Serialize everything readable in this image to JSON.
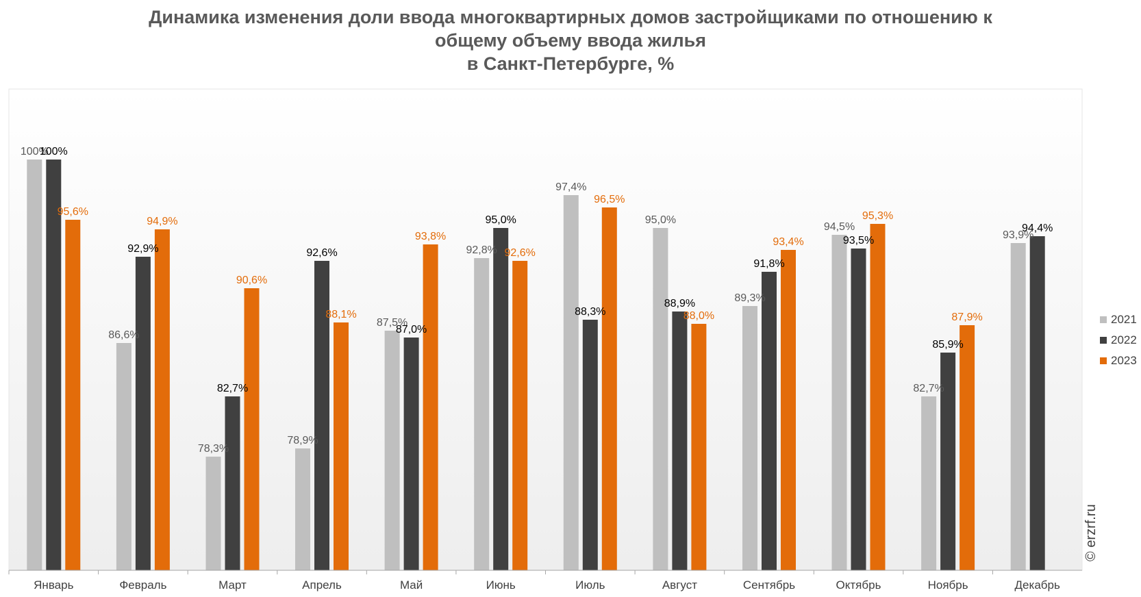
{
  "title": {
    "line1": "Динамика изменения доли ввода многоквартирных домов застройщиками по отношению к",
    "line2": "общему объему ввода жилья",
    "line3": "в Санкт-Петербурге, %"
  },
  "watermark": "© erzrf.ru",
  "colors": {
    "s2021": "#bfbfbf",
    "s2022": "#404040",
    "s2023": "#e36c0a"
  },
  "chart_data": {
    "type": "bar",
    "categories": [
      "Январь",
      "Февраль",
      "Март",
      "Апрель",
      "Май",
      "Июнь",
      "Июль",
      "Август",
      "Сентябрь",
      "Октябрь",
      "Ноябрь",
      "Декабрь"
    ],
    "ylim": [
      70,
      100
    ],
    "series": [
      {
        "name": "2021",
        "values": [
          100,
          86.6,
          78.3,
          78.9,
          87.5,
          92.8,
          97.4,
          95.0,
          89.3,
          94.5,
          82.7,
          93.9
        ],
        "labels": [
          "100%",
          "86,6%",
          "78,3%",
          "78,9%",
          "87,5%",
          "92,8%",
          "97,4%",
          "95,0%",
          "89,3%",
          "94,5%",
          "82,7%",
          "93,9%"
        ]
      },
      {
        "name": "2022",
        "values": [
          100,
          92.9,
          82.7,
          92.6,
          87.0,
          95.0,
          88.3,
          88.9,
          91.8,
          93.5,
          85.9,
          94.4
        ],
        "labels": [
          "100%",
          "92,9%",
          "82,7%",
          "92,6%",
          "87,0%",
          "95,0%",
          "88,3%",
          "88,9%",
          "91,8%",
          "93,5%",
          "85,9%",
          "94,4%"
        ]
      },
      {
        "name": "2023",
        "values": [
          95.6,
          94.9,
          90.6,
          88.1,
          93.8,
          92.6,
          96.5,
          88.0,
          93.4,
          95.3,
          87.9,
          null
        ],
        "labels": [
          "95,6%",
          "94,9%",
          "90,6%",
          "88,1%",
          "93,8%",
          "92,6%",
          "96,5%",
          "88,0%",
          "93,4%",
          "95,3%",
          "87,9%",
          ""
        ]
      }
    ],
    "legend_position": "right",
    "grid": false
  }
}
